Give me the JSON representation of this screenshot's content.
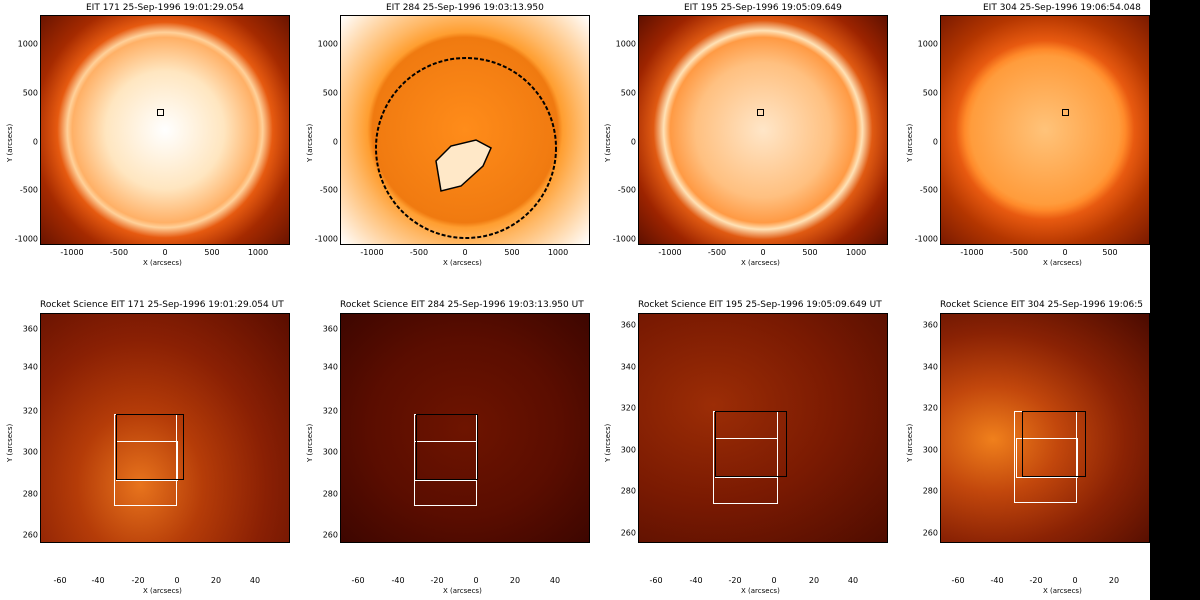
{
  "colors": {
    "frame": "#000000",
    "box_white": "#ffffff",
    "box_black": "#000000",
    "sun_orange": "#ff8c1a"
  },
  "top_row": [
    {
      "title": "EIT 171 25-Sep-1996 19:01:29.054"
    },
    {
      "title": "EIT 284 25-Sep-1996 19:03:13.950"
    },
    {
      "title": "EIT 195 25-Sep-1996 19:05:09.649"
    },
    {
      "title": "EIT 304 25-Sep-1996 19:06:54.048"
    }
  ],
  "bottom_row": [
    {
      "title": "Rocket Science EIT 171 25-Sep-1996 19:01:29.054 UT"
    },
    {
      "title": "Rocket Science EIT 284 25-Sep-1996 19:03:13.950 UT"
    },
    {
      "title": "Rocket Science EIT 195 25-Sep-1996 19:05:09.649 UT"
    },
    {
      "title": "Rocket Science EIT 304 25-Sep-1996 19:06:5"
    }
  ],
  "axes": {
    "xlabel": "X (arcsecs)",
    "ylabel": "Y (arcsecs)",
    "top_xticks": [
      "-1000",
      "-500",
      "0",
      "500",
      "1000"
    ],
    "top_yticks": [
      "1000",
      "500",
      "0",
      "-500",
      "-1000"
    ],
    "bottom_xticks": [
      "-60",
      "-40",
      "-20",
      "0",
      "20",
      "40"
    ],
    "bottom_yticks": [
      "360",
      "340",
      "320",
      "300",
      "280",
      "260"
    ]
  }
}
